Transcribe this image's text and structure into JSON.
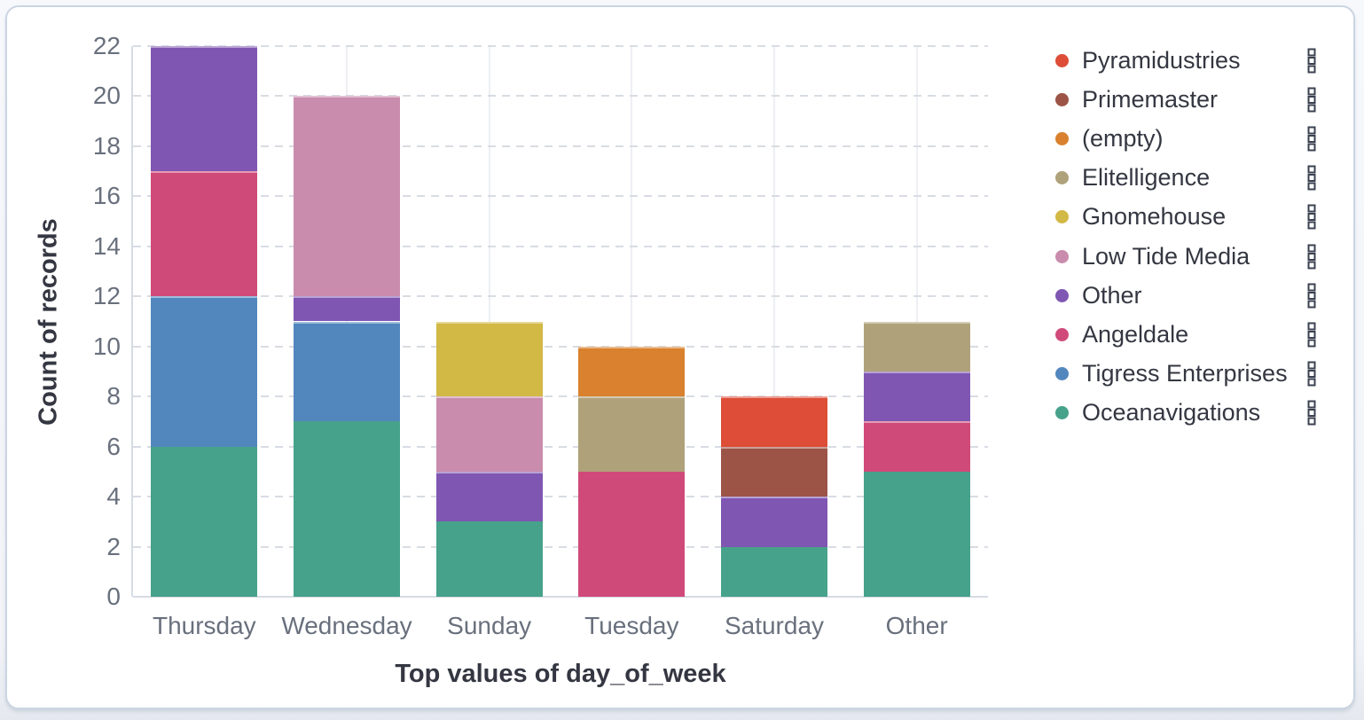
{
  "panel": {
    "background": "#ffffff",
    "border_color": "#cbd5e2",
    "page_background": "#f3f5f9"
  },
  "text_colors": {
    "axis_title": "#343741",
    "tick_label": "#69707d",
    "legend_label": "#343741"
  },
  "grid_colors": {
    "horizontal_dashed": "#d8dce3",
    "vertical_solid": "#edeff4",
    "axis_line": "#d6dce4"
  },
  "legend": {
    "position": "right",
    "action_icon": "boxes-vertical",
    "order_top_to_bottom": [
      "Pyramidustries",
      "Primemaster",
      "(empty)",
      "Elitelligence",
      "Gnomehouse",
      "Low Tide Media",
      "Other",
      "Angeldale",
      "Tigress Enterprises",
      "Oceanavigations"
    ]
  },
  "chart_data": {
    "type": "bar",
    "stacked": true,
    "orientation": "vertical",
    "title": "",
    "xlabel": "Top values of day_of_week",
    "ylabel": "Count of records",
    "categories": [
      "Thursday",
      "Wednesday",
      "Sunday",
      "Tuesday",
      "Saturday",
      "Other"
    ],
    "category_totals": [
      22,
      20,
      11,
      10,
      8,
      11
    ],
    "y_ticks": [
      0,
      2,
      4,
      6,
      8,
      10,
      12,
      14,
      16,
      18,
      20,
      22
    ],
    "ylim": [
      0,
      22
    ],
    "grid": {
      "horizontal": "dashed",
      "vertical": "category-center-lines"
    },
    "legend_position": "right",
    "series": [
      {
        "name": "Oceanavigations",
        "color": "#46a28a",
        "values": [
          6,
          7,
          3,
          0,
          2,
          5
        ]
      },
      {
        "name": "Tigress Enterprises",
        "color": "#5287be",
        "values": [
          6,
          4,
          0,
          0,
          0,
          0
        ]
      },
      {
        "name": "Angeldale",
        "color": "#d04a79",
        "values": [
          5,
          0,
          0,
          5,
          0,
          2
        ]
      },
      {
        "name": "Other",
        "color": "#7f56b2",
        "values": [
          5,
          1,
          2,
          0,
          2,
          2
        ]
      },
      {
        "name": "Low Tide Media",
        "color": "#c98cad",
        "values": [
          0,
          8,
          3,
          0,
          0,
          0
        ]
      },
      {
        "name": "Gnomehouse",
        "color": "#d2b844",
        "values": [
          0,
          0,
          3,
          0,
          0,
          0
        ]
      },
      {
        "name": "Elitelligence",
        "color": "#afa27a",
        "values": [
          0,
          0,
          0,
          3,
          0,
          2
        ]
      },
      {
        "name": "(empty)",
        "color": "#d9812e",
        "values": [
          0,
          0,
          0,
          2,
          0,
          0
        ]
      },
      {
        "name": "Primemaster",
        "color": "#9c5447",
        "values": [
          0,
          0,
          0,
          0,
          2,
          0
        ]
      },
      {
        "name": "Pyramidustries",
        "color": "#dd4d37",
        "values": [
          0,
          0,
          0,
          0,
          2,
          0
        ]
      }
    ]
  }
}
